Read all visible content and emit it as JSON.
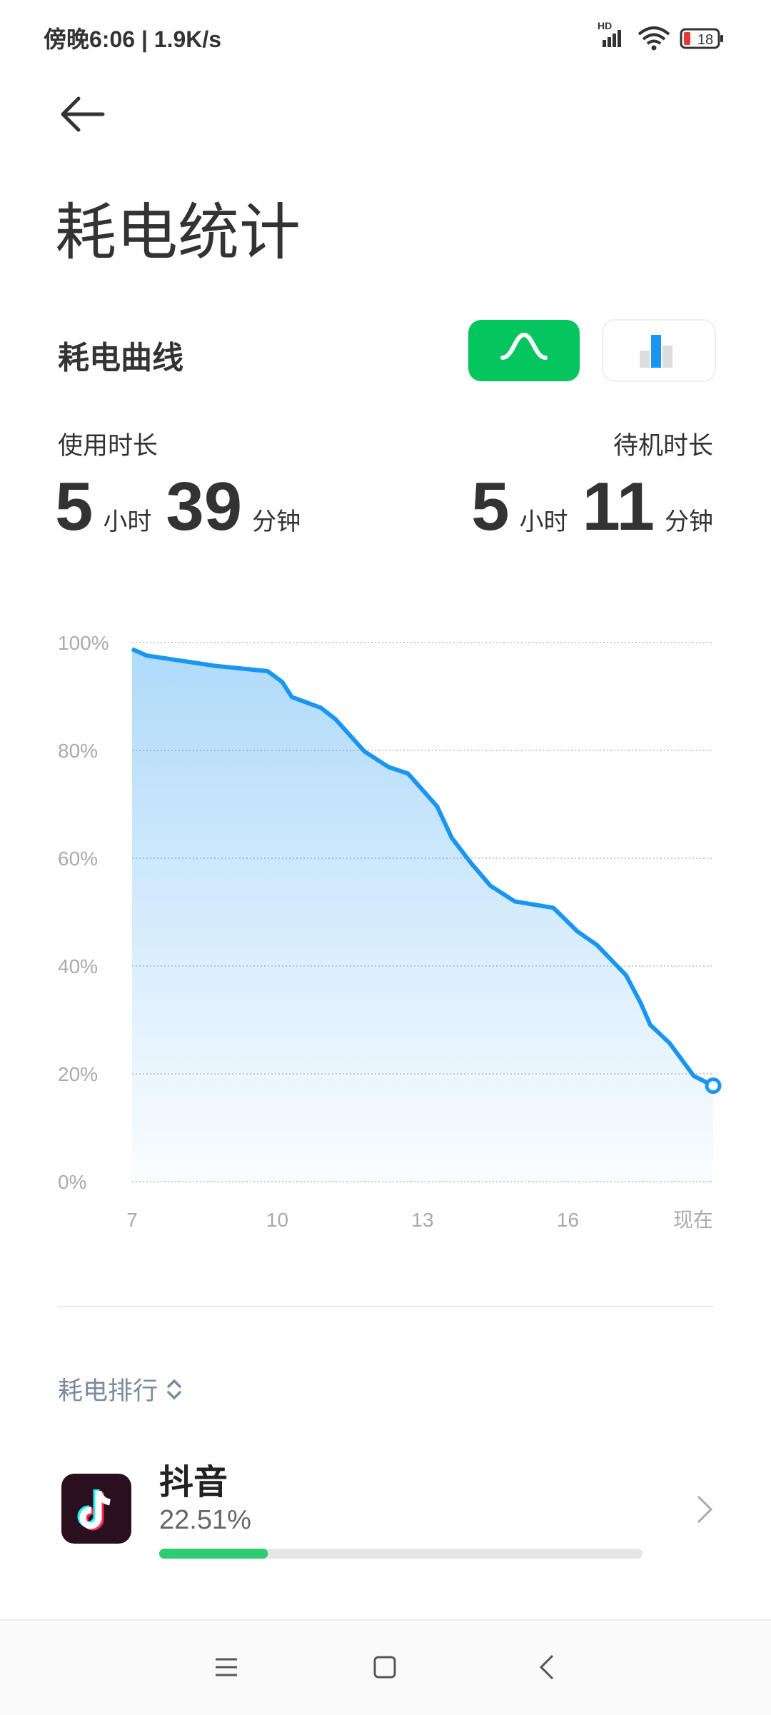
{
  "status_bar": {
    "time": "傍晚6:06 | 1.9K/s",
    "network": "HD",
    "battery": "18"
  },
  "header": {
    "title": "耗电统计"
  },
  "section": {
    "title": "耗电曲线"
  },
  "usage": {
    "label": "使用时长",
    "hours": 5,
    "hours_unit": "小时",
    "minutes": 39,
    "minutes_unit": "分钟"
  },
  "standby": {
    "label": "待机时长",
    "hours": 5,
    "hours_unit": "小时",
    "minutes": 11,
    "minutes_unit": "分钟"
  },
  "chart_data": {
    "type": "area",
    "x": [
      7,
      7.3,
      8.7,
      9.8,
      10.1,
      10.3,
      10.9,
      11.2,
      11.8,
      12.3,
      12.7,
      13.3,
      13.6,
      14.0,
      14.4,
      14.9,
      15.7,
      16.2,
      16.6,
      17.2,
      17.5,
      17.7,
      18.1,
      18.6,
      19.0
    ],
    "series": [
      {
        "color": "#1a96f0",
        "values": [
          98.8,
          97.6,
          95.7,
          94.7,
          92.7,
          89.9,
          87.9,
          85.8,
          79.8,
          76.9,
          75.7,
          69.6,
          63.8,
          59.1,
          54.9,
          52.0,
          50.8,
          46.4,
          43.9,
          38.3,
          33.2,
          29.1,
          25.7,
          19.6,
          17.8
        ]
      }
    ],
    "xlim": [
      7,
      19
    ],
    "xticks": [
      7,
      10,
      13,
      16,
      {
        "value": 19,
        "label": "现在"
      }
    ],
    "ylim": [
      0,
      100
    ],
    "yticks": [
      {
        "value": 0,
        "label": "0%"
      },
      {
        "value": 20,
        "label": "20%"
      },
      {
        "value": 40,
        "label": "40%"
      },
      {
        "value": 60,
        "label": "60%"
      },
      {
        "value": 80,
        "label": "80%"
      },
      {
        "value": 100,
        "label": "100%"
      }
    ],
    "grid": true
  },
  "ranking": {
    "title": "耗电排行",
    "items": [
      {
        "name": "抖音",
        "value": 22.51,
        "label": "22.51%"
      }
    ]
  }
}
